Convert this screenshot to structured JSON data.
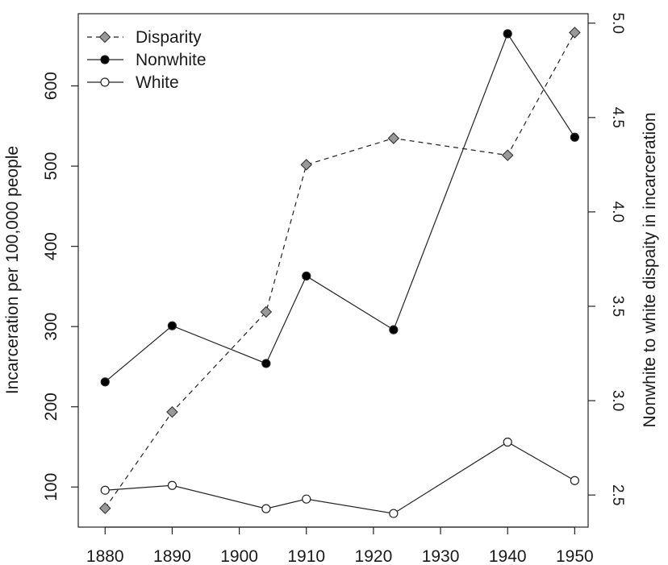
{
  "chart_data": {
    "type": "line",
    "x": [
      1880,
      1890,
      1904,
      1910,
      1923,
      1940,
      1950
    ],
    "xlim": [
      1876,
      1952
    ],
    "x_ticks": [
      "1880",
      "1890",
      "1900",
      "1910",
      "1920",
      "1930",
      "1940",
      "1950"
    ],
    "ylabel_left": "Incarceration per 100,000 people",
    "ylim_left": [
      50,
      690
    ],
    "y_ticks_left": [
      "100",
      "200",
      "300",
      "400",
      "500",
      "600"
    ],
    "ylabel_right": "Nonwhite to white dispaity in incarceration",
    "ylim_right": [
      2.33,
      5.05
    ],
    "y_ticks_right": [
      "2.5",
      "3.0",
      "3.5",
      "4.0",
      "4.5",
      "5.0"
    ],
    "grid": false,
    "legend_position": "top-left",
    "series": [
      {
        "name": "Disparity",
        "axis": "right",
        "line": "dashed",
        "marker": "diamond",
        "color": "#999999",
        "values": [
          2.43,
          2.94,
          3.47,
          4.25,
          4.39,
          4.3,
          4.95
        ]
      },
      {
        "name": "Nonwhite",
        "axis": "left",
        "line": "solid",
        "marker": "filled-circle",
        "color": "#000000",
        "values": [
          231,
          301,
          254,
          363,
          296,
          665,
          536
        ]
      },
      {
        "name": "White",
        "axis": "left",
        "line": "solid",
        "marker": "open-circle",
        "color": "#ffffff",
        "values": [
          96,
          102,
          73,
          85,
          67,
          156,
          108
        ]
      }
    ]
  }
}
